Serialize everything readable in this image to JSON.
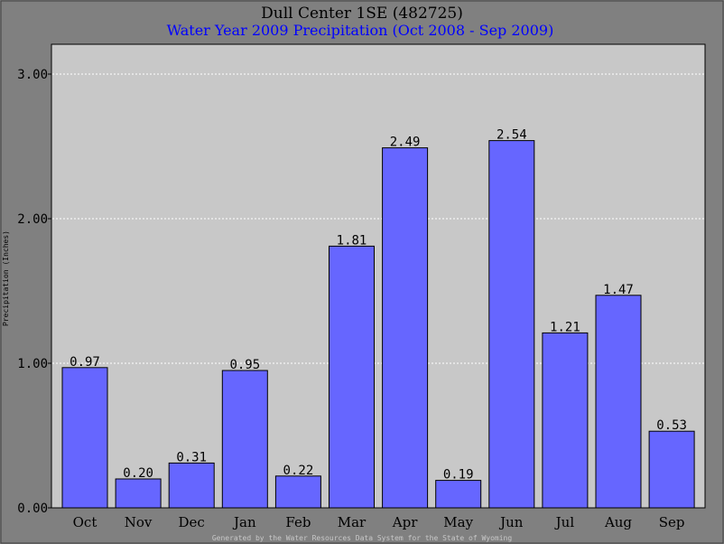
{
  "colors": {
    "background": "#808080",
    "plot_area": "#c8c8c8",
    "bar_fill": "#6666ff",
    "bar_stroke": "#000000",
    "title": "#000000",
    "subtitle": "#0000ff",
    "grid": "#ffffff",
    "footer": "#c8c8c8"
  },
  "chart_data": {
    "type": "bar",
    "title": "Dull Center 1SE (482725)",
    "subtitle": "Water Year 2009 Precipitation (Oct 2008 - Sep 2009)",
    "ylabel": "Precipitation (Inches)",
    "xlabel": "",
    "categories": [
      "Oct",
      "Nov",
      "Dec",
      "Jan",
      "Feb",
      "Mar",
      "Apr",
      "May",
      "Jun",
      "Jul",
      "Aug",
      "Sep"
    ],
    "values": [
      0.97,
      0.2,
      0.31,
      0.95,
      0.22,
      1.81,
      2.49,
      0.19,
      2.54,
      1.21,
      1.47,
      0.53
    ],
    "value_labels": [
      "0.97",
      "0.20",
      "0.31",
      "0.95",
      "0.22",
      "1.81",
      "2.49",
      "0.19",
      "2.54",
      "1.21",
      "1.47",
      "0.53"
    ],
    "ylim": [
      0,
      3.0
    ],
    "yticks": [
      0,
      1,
      2,
      3
    ],
    "ytick_labels": [
      "0.00",
      "1.00",
      "2.00",
      "3.00"
    ],
    "grid": true
  },
  "footer": "Generated by the Water Resources Data System for the State of Wyoming"
}
